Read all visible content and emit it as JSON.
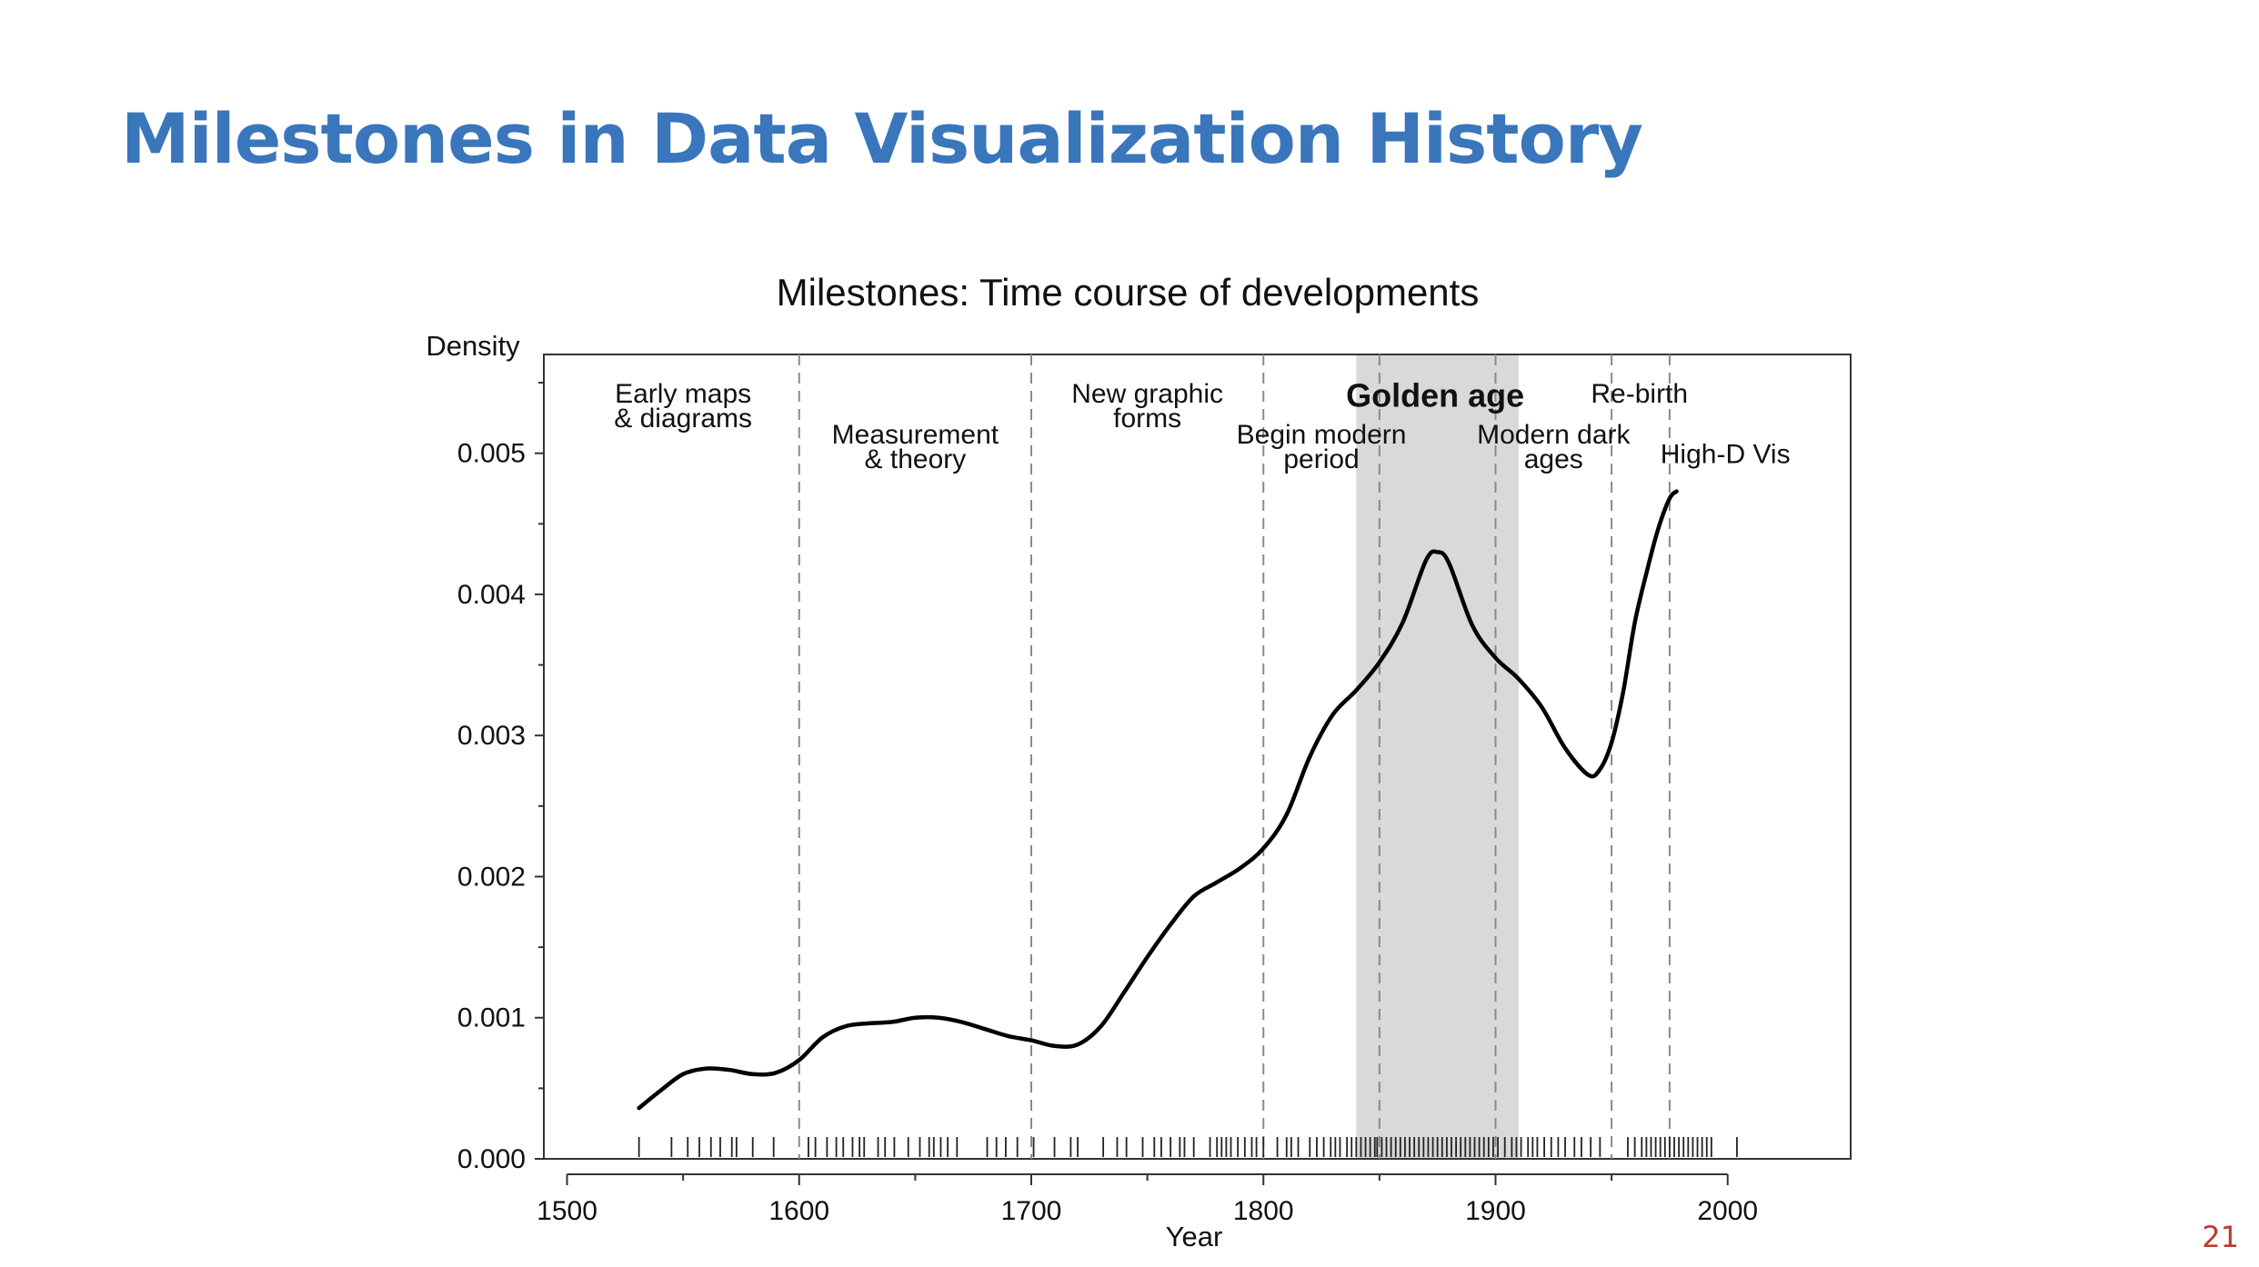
{
  "slide": {
    "title": "Milestones in Data Visualization History",
    "page_number": "21"
  },
  "chart_data": {
    "type": "line",
    "title": "Milestones: Time course of developments",
    "xlabel": "Year",
    "ylabel": "Density",
    "xlim": [
      1490,
      2053
    ],
    "ylim": [
      0,
      0.0057
    ],
    "x_ticks": [
      {
        "value": 1500,
        "label": "1500"
      },
      {
        "value": 1600,
        "label": "1600"
      },
      {
        "value": 1700,
        "label": "1700"
      },
      {
        "value": 1800,
        "label": "1800"
      },
      {
        "value": 1900,
        "label": "1900"
      },
      {
        "value": 2000,
        "label": "2000"
      }
    ],
    "y_ticks": [
      {
        "value": 0,
        "label": "0.000"
      },
      {
        "value": 0.001,
        "label": "0.001"
      },
      {
        "value": 0.002,
        "label": "0.002"
      },
      {
        "value": 0.003,
        "label": "0.003"
      },
      {
        "value": 0.004,
        "label": "0.004"
      },
      {
        "value": 0.005,
        "label": "0.005"
      }
    ],
    "y_minor_ticks": [
      0.0005,
      0.0015,
      0.0025,
      0.0035,
      0.0045,
      0.0055
    ],
    "grid": false,
    "shaded_region": {
      "from": 1840,
      "to": 1910,
      "color": "#d9d9d9"
    },
    "period_boundaries": [
      1600,
      1700,
      1800,
      1850,
      1900,
      1950,
      1975
    ],
    "period_labels": [
      {
        "lines": [
          "Early maps",
          "& diagrams"
        ],
        "x": 1550,
        "y": 0.00536,
        "bold": false
      },
      {
        "lines": [
          "Measurement",
          "& theory"
        ],
        "x": 1650,
        "y": 0.00507,
        "bold": false
      },
      {
        "lines": [
          "New graphic",
          "forms"
        ],
        "x": 1750,
        "y": 0.00536,
        "bold": false
      },
      {
        "lines": [
          "Begin modern",
          "period"
        ],
        "x": 1825,
        "y": 0.00507,
        "bold": false
      },
      {
        "lines": [
          "Golden age"
        ],
        "x": 1874,
        "y": 0.00533,
        "bold": true
      },
      {
        "lines": [
          "Modern dark",
          "ages"
        ],
        "x": 1925,
        "y": 0.00507,
        "bold": false
      },
      {
        "lines": [
          "Re-birth"
        ],
        "x": 1962,
        "y": 0.00536,
        "bold": false
      },
      {
        "lines": [
          "High-D Vis"
        ],
        "x": 1999,
        "y": 0.00493,
        "bold": false
      }
    ],
    "series": [
      {
        "x": [
          1531,
          1540,
          1550,
          1560,
          1570,
          1580,
          1590,
          1600,
          1610,
          1620,
          1630,
          1640,
          1650,
          1660,
          1670,
          1680,
          1690,
          1700,
          1710,
          1720,
          1730,
          1740,
          1750,
          1760,
          1770,
          1780,
          1790,
          1800,
          1810,
          1820,
          1830,
          1840,
          1850,
          1860,
          1870,
          1875,
          1880,
          1890,
          1900,
          1910,
          1920,
          1930,
          1940,
          1945,
          1950,
          1955,
          1960,
          1965,
          1970,
          1975,
          1978
        ],
        "values": [
          0.00036,
          0.00048,
          0.0006,
          0.00064,
          0.00063,
          0.0006,
          0.00061,
          0.0007,
          0.00086,
          0.00094,
          0.00096,
          0.00097,
          0.001,
          0.001,
          0.00097,
          0.00092,
          0.00087,
          0.00084,
          0.0008,
          0.00081,
          0.00094,
          0.00118,
          0.00143,
          0.00166,
          0.00186,
          0.00196,
          0.00206,
          0.0022,
          0.00244,
          0.00285,
          0.00315,
          0.00332,
          0.00352,
          0.0038,
          0.00424,
          0.0043,
          0.00422,
          0.00378,
          0.00355,
          0.0034,
          0.0032,
          0.00291,
          0.00272,
          0.00276,
          0.00295,
          0.00331,
          0.0038,
          0.00415,
          0.00446,
          0.00468,
          0.00473
        ]
      }
    ],
    "rug_years": [
      1531,
      1545,
      1552,
      1557,
      1562,
      1566,
      1571,
      1573,
      1580,
      1589,
      1604,
      1607,
      1612,
      1616,
      1619,
      1623,
      1626,
      1628,
      1634,
      1637,
      1641,
      1647,
      1652,
      1656,
      1658,
      1661,
      1664,
      1668,
      1681,
      1685,
      1689,
      1694,
      1701,
      1710,
      1717,
      1720,
      1731,
      1737,
      1741,
      1748,
      1753,
      1756,
      1760,
      1764,
      1766,
      1770,
      1777,
      1780,
      1782,
      1784,
      1786,
      1789,
      1792,
      1795,
      1797,
      1800,
      1806,
      1810,
      1812,
      1815,
      1820,
      1823,
      1826,
      1829,
      1831,
      1833,
      1836,
      1838,
      1840,
      1842,
      1844,
      1846,
      1848,
      1849,
      1851,
      1853,
      1855,
      1857,
      1859,
      1861,
      1863,
      1865,
      1867,
      1869,
      1871,
      1873,
      1875,
      1877,
      1879,
      1881,
      1883,
      1885,
      1887,
      1889,
      1891,
      1893,
      1895,
      1897,
      1899,
      1901,
      1904,
      1907,
      1909,
      1911,
      1914,
      1916,
      1918,
      1921,
      1924,
      1927,
      1930,
      1934,
      1937,
      1941,
      1945,
      1957,
      1960,
      1963,
      1965,
      1967,
      1969,
      1971,
      1973,
      1975,
      1977,
      1979,
      1981,
      1983,
      1985,
      1987,
      1989,
      1991,
      1993,
      2004
    ]
  }
}
